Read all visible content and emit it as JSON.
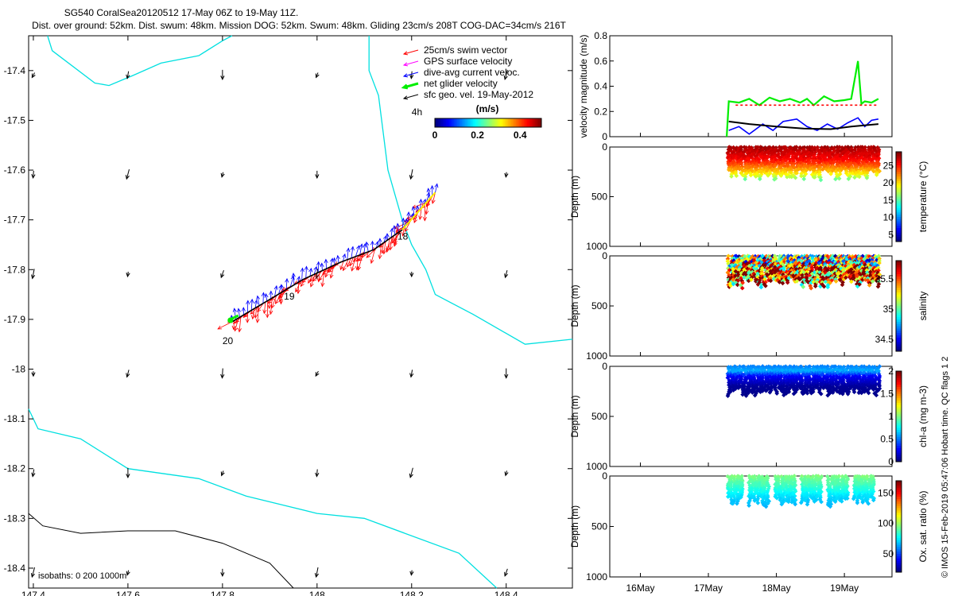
{
  "header": {
    "title": "SG540 CoralSea20120512 17-May 06Z to 19-May 11Z.",
    "subtitle": "Dist. over ground: 52km. Dist. swum: 48km. Mission DOG: 52km. Swum: 48km. Gliding 23cm/s 208T COG-DAC=34cm/s 216T"
  },
  "side_text": "© IMOS 15-Feb-2019 05:47:06 Hobart time. QC flags 1  2",
  "colors": {
    "coast": "#00e0e0",
    "swim": "#ff0000",
    "gps": "#ff00ff",
    "dac": "#0000ff",
    "net": "#00ee00",
    "sfc": "#000000",
    "isobath": "#000000"
  },
  "chart_data": [
    {
      "type": "map",
      "xlim": [
        147.39,
        148.54
      ],
      "ylim": [
        -18.44,
        -17.33
      ],
      "x_ticks": [
        "147.4",
        "147.6",
        "147.8",
        "148",
        "148.2",
        "148.4"
      ],
      "y_ticks": [
        "-17.4",
        "-17.5",
        "-17.6",
        "-17.7",
        "-17.8",
        "-17.9",
        "-18",
        "-18.1",
        "-18.2",
        "-18.3",
        "-18.4"
      ],
      "legend": [
        "25cm/s swim vector",
        "GPS surface velocity",
        "dive-avg current veloc.",
        "net glider velocity",
        "sfc geo. vel. 19-May-2012"
      ],
      "colorbar": {
        "title": "(m/s)",
        "ticks": [
          "0",
          "0.2",
          "0.4"
        ],
        "range": [
          0,
          0.5
        ]
      },
      "isobath_label": "isobaths: 0   200  1000m",
      "day_labels": [
        {
          "text": "4h",
          "lon": 148.2,
          "lat": -17.49
        },
        {
          "text": "18",
          "lon": 148.17,
          "lat": -17.74
        },
        {
          "text": "19",
          "lon": 147.93,
          "lat": -17.86
        },
        {
          "text": "20",
          "lon": 147.8,
          "lat": -17.95
        }
      ],
      "track": [
        [
          147.82,
          -17.905
        ],
        [
          147.9,
          -17.86
        ],
        [
          147.97,
          -17.82
        ],
        [
          148.05,
          -17.785
        ],
        [
          148.12,
          -17.76
        ],
        [
          148.18,
          -17.72
        ],
        [
          148.25,
          -17.645
        ]
      ],
      "coast_north": [
        [
          147.43,
          -17.33
        ],
        [
          147.44,
          -17.36
        ],
        [
          147.53,
          -17.425
        ],
        [
          147.56,
          -17.43
        ],
        [
          147.61,
          -17.41
        ],
        [
          147.67,
          -17.385
        ],
        [
          147.75,
          -17.37
        ],
        [
          147.8,
          -17.34
        ],
        [
          147.82,
          -17.33
        ]
      ],
      "coast_east": [
        [
          148.11,
          -17.33
        ],
        [
          148.11,
          -17.4
        ],
        [
          148.13,
          -17.45
        ],
        [
          148.15,
          -17.6
        ],
        [
          148.18,
          -17.7
        ],
        [
          148.2,
          -17.75
        ],
        [
          148.23,
          -17.8
        ],
        [
          148.25,
          -17.85
        ],
        [
          148.33,
          -17.89
        ],
        [
          148.44,
          -17.95
        ],
        [
          148.54,
          -17.94
        ]
      ],
      "coast_south": [
        [
          147.39,
          -18.08
        ],
        [
          147.41,
          -18.12
        ],
        [
          147.5,
          -18.14
        ],
        [
          147.6,
          -18.2
        ],
        [
          147.75,
          -18.22
        ],
        [
          147.85,
          -18.255
        ],
        [
          148.0,
          -18.29
        ],
        [
          148.1,
          -18.3
        ],
        [
          148.3,
          -18.37
        ],
        [
          148.38,
          -18.44
        ]
      ],
      "isobath_1000": [
        [
          147.39,
          -18.29
        ],
        [
          147.42,
          -18.315
        ],
        [
          147.5,
          -18.33
        ],
        [
          147.6,
          -18.325
        ],
        [
          147.7,
          -18.325
        ],
        [
          147.8,
          -18.35
        ],
        [
          147.9,
          -18.39
        ],
        [
          147.95,
          -18.44
        ]
      ]
    },
    {
      "type": "line",
      "ylabel": "velocity magnitude (m/s)",
      "ylim": [
        0,
        0.8
      ],
      "y_ticks": [
        "0",
        "0.2",
        "0.4",
        "0.6",
        "0.8"
      ],
      "x_ticks": [
        "16May",
        "17May",
        "18May",
        "19May"
      ],
      "series": [
        {
          "color": "#00ee00",
          "x": [
            17.27,
            17.3,
            17.45,
            17.6,
            17.75,
            17.9,
            18.05,
            18.2,
            18.35,
            18.45,
            18.55,
            18.7,
            18.85,
            19.0,
            19.1,
            19.2,
            19.25,
            19.3,
            19.4,
            19.5
          ],
          "y": [
            0,
            0.28,
            0.27,
            0.3,
            0.25,
            0.31,
            0.28,
            0.3,
            0.27,
            0.3,
            0.25,
            0.32,
            0.28,
            0.29,
            0.3,
            0.6,
            0.26,
            0.28,
            0.27,
            0.3
          ]
        },
        {
          "color": "#ff0000",
          "x": [
            17.4,
            19.5
          ],
          "y": [
            0.25,
            0.25
          ]
        },
        {
          "color": "#0000ff",
          "x": [
            17.3,
            17.45,
            17.6,
            17.8,
            17.95,
            18.1,
            18.3,
            18.45,
            18.6,
            18.75,
            18.9,
            19.05,
            19.2,
            19.3,
            19.4,
            19.5
          ],
          "y": [
            0.05,
            0.08,
            0.02,
            0.1,
            0.05,
            0.12,
            0.14,
            0.08,
            0.05,
            0.1,
            0.06,
            0.11,
            0.15,
            0.08,
            0.13,
            0.14
          ]
        },
        {
          "color": "#000000",
          "x": [
            17.3,
            17.6,
            18.0,
            18.4,
            18.8,
            19.1,
            19.5
          ],
          "y": [
            0.12,
            0.1,
            0.08,
            0.065,
            0.06,
            0.08,
            0.1
          ]
        }
      ]
    },
    {
      "type": "scatter",
      "ylabel": "Depth (m)",
      "cbar_label": "temperature (°C)",
      "cbar_ticks": [
        "5",
        "10",
        "15",
        "20",
        "25"
      ],
      "cbar_range": [
        3,
        29
      ],
      "ylim": [
        0,
        1000
      ],
      "y_ticks": [
        "0",
        "500",
        "1000"
      ],
      "x_ticks": [
        "16May",
        "17May",
        "18May",
        "19May"
      ],
      "x_range": [
        17.3,
        19.5
      ],
      "depth_max": 330,
      "colormap": "jet",
      "profile": [
        [
          0,
          28
        ],
        [
          120,
          26
        ],
        [
          200,
          23
        ],
        [
          280,
          19
        ],
        [
          330,
          15
        ]
      ]
    },
    {
      "type": "scatter",
      "ylabel": "Depth (m)",
      "cbar_label": "salinity",
      "cbar_ticks": [
        "34.5",
        "35",
        "35.5"
      ],
      "cbar_range": [
        34.3,
        35.8
      ],
      "ylim": [
        0,
        1000
      ],
      "y_ticks": [
        "0",
        "500",
        "1000"
      ],
      "x_ticks": [
        "16May",
        "17May",
        "18May",
        "19May"
      ],
      "x_range": [
        17.3,
        19.5
      ],
      "depth_max": 320,
      "colormap": "jet",
      "profile": [
        [
          0,
          34.9
        ],
        [
          60,
          35.1
        ],
        [
          120,
          35.45
        ],
        [
          200,
          35.6
        ],
        [
          320,
          35.5
        ]
      ]
    },
    {
      "type": "scatter",
      "ylabel": "Depth (m)",
      "cbar_label": "chl-a (mg m-3)",
      "cbar_ticks": [
        "0",
        "0.5",
        "1",
        "1.5",
        "2"
      ],
      "cbar_range": [
        0,
        2
      ],
      "ylim": [
        0,
        1000
      ],
      "y_ticks": [
        "0",
        "500",
        "1000"
      ],
      "x_ticks": [
        "16May",
        "17May",
        "18May",
        "19May"
      ],
      "x_range": [
        17.3,
        19.5
      ],
      "depth_max": 300,
      "colormap": "jet",
      "profile": [
        [
          0,
          0.5
        ],
        [
          50,
          0.6
        ],
        [
          100,
          0.25
        ],
        [
          200,
          0.05
        ],
        [
          300,
          0.02
        ]
      ]
    },
    {
      "type": "scatter",
      "ylabel": "Depth (m)",
      "cbar_label": "Ox. sat. ratio (%)",
      "cbar_ticks": [
        "50",
        "100",
        "150"
      ],
      "cbar_range": [
        20,
        170
      ],
      "ylim": [
        0,
        1000
      ],
      "y_ticks": [
        "0",
        "500",
        "1000"
      ],
      "x_ticks": [
        "16May",
        "17May",
        "18May",
        "19May"
      ],
      "x_range": [
        17.3,
        19.5
      ],
      "depth_max": 300,
      "colormap": "jet",
      "profile": [
        [
          0,
          95
        ],
        [
          100,
          85
        ],
        [
          200,
          72
        ],
        [
          300,
          65
        ]
      ]
    }
  ]
}
